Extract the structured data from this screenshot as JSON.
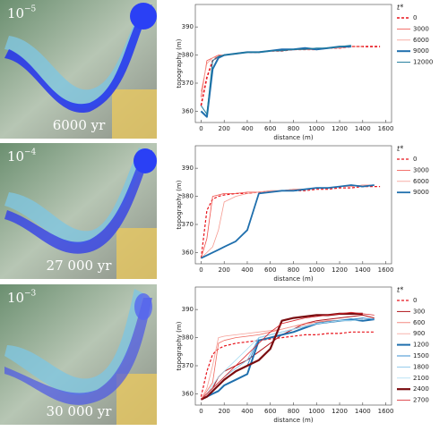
{
  "panels": [
    {
      "scale_base": "10",
      "scale_exponent": "−5",
      "time": "6000 yr"
    },
    {
      "scale_base": "10",
      "scale_exponent": "−4",
      "time": "27 000 yr"
    },
    {
      "scale_base": "10",
      "scale_exponent": "−3",
      "time": "30 000 yr"
    }
  ],
  "chart_data": [
    {
      "type": "line",
      "x_label": "distance (m)",
      "y_label": "topography (m)",
      "legend_title": "t*",
      "x": [
        0,
        50,
        100,
        150,
        200,
        300,
        400,
        500,
        600,
        700,
        800,
        900,
        1000,
        1100,
        1200,
        1300,
        1400,
        1500,
        1550
      ],
      "xlim": [
        -50,
        1650
      ],
      "xticks": [
        0,
        200,
        400,
        600,
        800,
        1000,
        1200,
        1400,
        1600
      ],
      "ylim": [
        356,
        398
      ],
      "yticks": [
        360,
        370,
        380,
        390
      ],
      "series": [
        {
          "name": "0",
          "color": "#e8141c",
          "width": 1.6,
          "dash": true,
          "values": [
            362,
            372,
            378,
            379.5,
            380,
            380.5,
            381,
            381,
            381.5,
            381.5,
            382,
            382,
            382,
            382.5,
            382.5,
            383,
            383,
            383,
            383
          ]
        },
        {
          "name": "3000",
          "color": "#f0504a",
          "width": 0.8,
          "dash": false,
          "values": [
            365,
            378,
            379,
            380,
            380,
            380.5,
            381,
            381,
            381.5,
            381.5,
            382,
            382,
            382,
            382.5,
            382.5,
            383,
            383,
            null,
            null
          ]
        },
        {
          "name": "6000",
          "color": "#f59a90",
          "width": 0.8,
          "dash": false,
          "values": [
            367,
            377,
            379,
            379.5,
            380,
            380.5,
            381,
            381,
            381.5,
            381.5,
            382,
            382,
            382,
            382.5,
            382.5,
            383,
            383,
            null,
            null
          ]
        },
        {
          "name": "9000",
          "color": "#1f6fad",
          "width": 2,
          "dash": false,
          "values": [
            360,
            358,
            375,
            379,
            380,
            380.5,
            381,
            381,
            381.5,
            382,
            382,
            382.5,
            382,
            382.5,
            383,
            383,
            null,
            null,
            null
          ]
        },
        {
          "name": "12000",
          "color": "#1b7a9a",
          "width": 1,
          "dash": false,
          "values": [
            362,
            359,
            378,
            379.5,
            380,
            380.5,
            381,
            381,
            381.5,
            381.5,
            382,
            382,
            382.5,
            382.5,
            383,
            383.5,
            null,
            null,
            null
          ]
        }
      ]
    },
    {
      "type": "line",
      "x_label": "distance (m)",
      "y_label": "topography (m)",
      "legend_title": "t*",
      "x": [
        0,
        50,
        100,
        150,
        200,
        300,
        400,
        500,
        600,
        700,
        800,
        900,
        1000,
        1100,
        1200,
        1300,
        1400,
        1500,
        1550
      ],
      "xlim": [
        -50,
        1650
      ],
      "xticks": [
        0,
        200,
        400,
        600,
        800,
        1000,
        1200,
        1400,
        1600
      ],
      "ylim": [
        356,
        398
      ],
      "yticks": [
        360,
        370,
        380,
        390
      ],
      "series": [
        {
          "name": "0",
          "color": "#e8141c",
          "width": 1.2,
          "dash": true,
          "values": [
            358,
            375,
            379,
            380,
            380.5,
            381,
            381,
            381.5,
            381.5,
            382,
            382,
            382,
            382.5,
            382.5,
            383,
            383,
            383.5,
            383.5,
            383.5
          ]
        },
        {
          "name": "3000",
          "color": "#f0504a",
          "width": 0.8,
          "dash": false,
          "values": [
            358,
            365,
            380,
            380.5,
            381,
            381,
            381.5,
            381.5,
            382,
            382,
            382.5,
            382.5,
            383,
            383,
            383.5,
            383.5,
            384,
            384,
            null
          ]
        },
        {
          "name": "6000",
          "color": "#f59a90",
          "width": 0.8,
          "dash": false,
          "values": [
            358,
            360,
            362,
            368,
            378,
            380,
            381,
            381.5,
            382,
            382,
            382.5,
            382.5,
            383,
            383,
            383.5,
            383.5,
            384,
            384,
            null
          ]
        },
        {
          "name": "9000",
          "color": "#1f6fad",
          "width": 1.8,
          "dash": false,
          "values": [
            358,
            359,
            360,
            361,
            362,
            364,
            368,
            381,
            381.5,
            382,
            382,
            382.5,
            383,
            383,
            383.5,
            384,
            383.5,
            384,
            null
          ]
        }
      ]
    },
    {
      "type": "line",
      "x_label": "distance (m)",
      "y_label": "topography (m)",
      "legend_title": "t*",
      "x": [
        0,
        50,
        100,
        150,
        200,
        300,
        400,
        500,
        600,
        700,
        800,
        900,
        1000,
        1100,
        1200,
        1300,
        1400,
        1500,
        1550
      ],
      "xlim": [
        -50,
        1650
      ],
      "xticks": [
        0,
        200,
        400,
        600,
        800,
        1000,
        1200,
        1400,
        1600
      ],
      "ylim": [
        356,
        398
      ],
      "yticks": [
        360,
        370,
        380,
        390
      ],
      "series": [
        {
          "name": "0",
          "color": "#e8141c",
          "width": 1.2,
          "dash": true,
          "values": [
            359,
            368,
            374,
            376,
            377,
            378,
            378.5,
            379,
            379.5,
            380,
            380.5,
            381,
            381,
            381.5,
            381.5,
            382,
            382,
            382,
            null
          ]
        },
        {
          "name": "300",
          "color": "#b0141a",
          "width": 1,
          "dash": false,
          "values": [
            358,
            360,
            362,
            366,
            368,
            370,
            372,
            375,
            378,
            381,
            383,
            385,
            386,
            386.5,
            387,
            387.5,
            388,
            387,
            null
          ]
        },
        {
          "name": "600",
          "color": "#f06a60",
          "width": 0.8,
          "dash": false,
          "values": [
            358,
            361,
            364,
            378,
            379,
            380,
            380.5,
            381,
            382,
            383,
            384,
            385,
            385.5,
            386,
            386,
            386.5,
            386.5,
            null,
            null
          ]
        },
        {
          "name": "900",
          "color": "#f5a098",
          "width": 0.8,
          "dash": false,
          "values": [
            358,
            362,
            370,
            380,
            380.5,
            381,
            381.5,
            382,
            382.5,
            383,
            384,
            384.5,
            385,
            385.5,
            386,
            386,
            386.5,
            null,
            null
          ]
        },
        {
          "name": "1200",
          "color": "#1f6fad",
          "width": 2,
          "dash": false,
          "values": [
            358,
            359,
            360,
            361,
            363,
            365,
            367,
            379,
            380,
            381,
            382,
            383.5,
            385,
            385.5,
            386,
            386.5,
            386,
            386.5,
            null
          ]
        },
        {
          "name": "1500",
          "color": "#3b8fd0",
          "width": 1,
          "dash": false,
          "values": [
            358,
            359,
            361,
            363,
            365,
            368,
            370,
            380,
            381,
            382,
            383,
            384,
            385,
            385.5,
            386,
            386.5,
            387,
            386.5,
            null
          ]
        },
        {
          "name": "1800",
          "color": "#7cc0e8",
          "width": 0.8,
          "dash": false,
          "values": [
            358,
            360,
            362,
            364,
            366,
            369,
            372,
            380,
            381,
            382,
            383,
            384,
            385,
            385.5,
            386,
            386,
            386.5,
            null,
            null
          ]
        },
        {
          "name": "2100",
          "color": "#a8dcf2",
          "width": 0.8,
          "dash": false,
          "values": [
            358,
            360,
            363,
            366,
            368,
            372,
            376,
            380,
            381,
            382,
            383,
            384,
            385,
            385.5,
            386,
            386,
            386.5,
            null,
            null
          ]
        },
        {
          "name": "2400",
          "color": "#7a0c10",
          "width": 2.2,
          "dash": false,
          "values": [
            358,
            359,
            361,
            363,
            365,
            368,
            370,
            372,
            376,
            386,
            387,
            387.5,
            388,
            388,
            388.5,
            388.5,
            388.5,
            null,
            null
          ]
        },
        {
          "name": "2700",
          "color": "#d8232a",
          "width": 0.8,
          "dash": false,
          "values": [
            358,
            360,
            362,
            364,
            366,
            370,
            374,
            378,
            382,
            385,
            386,
            387,
            387.5,
            388,
            388.5,
            389,
            388.5,
            388,
            null
          ]
        }
      ]
    }
  ]
}
